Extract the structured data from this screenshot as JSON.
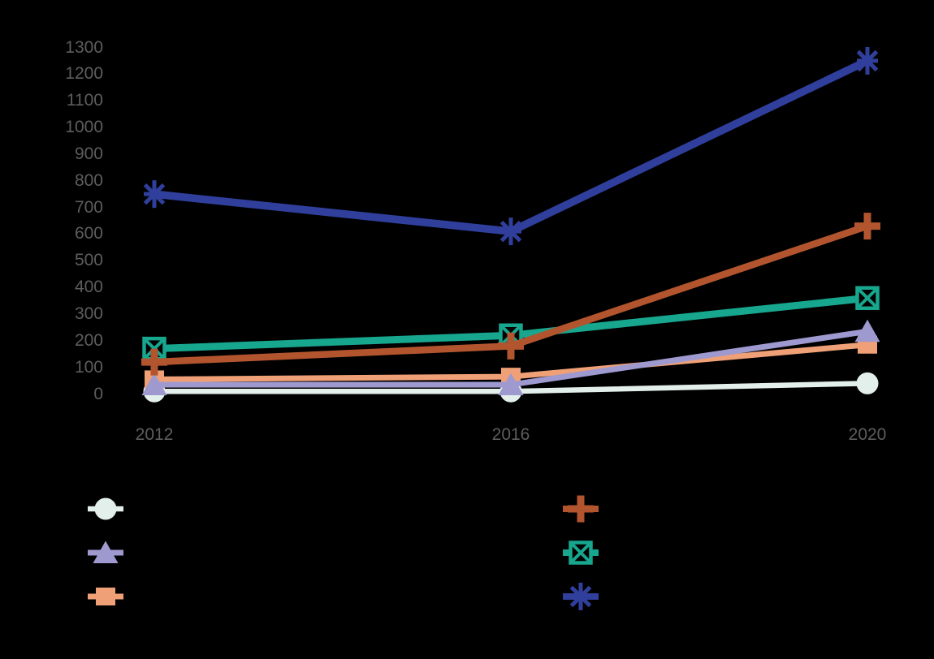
{
  "canvas": {
    "background": "#000000"
  },
  "axes": {
    "tick_color": "#5d5d5d",
    "y_tick_labels": [
      "0",
      "100",
      "200",
      "300",
      "400",
      "500",
      "600",
      "700",
      "800",
      "900",
      "1000",
      "1100",
      "1200",
      "1300"
    ],
    "x_tick_labels": [
      "2012",
      "2016",
      "2020"
    ]
  },
  "chart_data": {
    "type": "line",
    "title": "",
    "xlabel": "",
    "ylabel": "",
    "categories": [
      "2012",
      "2016",
      "2020"
    ],
    "ylim": [
      0,
      1300
    ],
    "y_tick_step": 100,
    "grid": false,
    "axis_lines": false,
    "legend_position": "bottom, two columns, markers only (no visible label text)",
    "series": [
      {
        "name": "circle-series",
        "marker": "circle",
        "color": "#e2efeb",
        "values": [
          10,
          10,
          40
        ]
      },
      {
        "name": "triangle-series",
        "marker": "triangle-up",
        "color": "#9e99cf",
        "values": [
          35,
          35,
          235
        ]
      },
      {
        "name": "square-series",
        "marker": "square",
        "color": "#f0a076",
        "values": [
          55,
          65,
          185
        ]
      },
      {
        "name": "plus-series",
        "marker": "plus",
        "color": "#b2552e",
        "values": [
          120,
          180,
          630
        ]
      },
      {
        "name": "boxed-x-series",
        "marker": "square-with-x",
        "color": "#17a68e",
        "values": [
          170,
          220,
          360
        ]
      },
      {
        "name": "asterisk-series",
        "marker": "asterisk",
        "color": "#303f9c",
        "values": [
          750,
          610,
          1250
        ]
      }
    ]
  }
}
